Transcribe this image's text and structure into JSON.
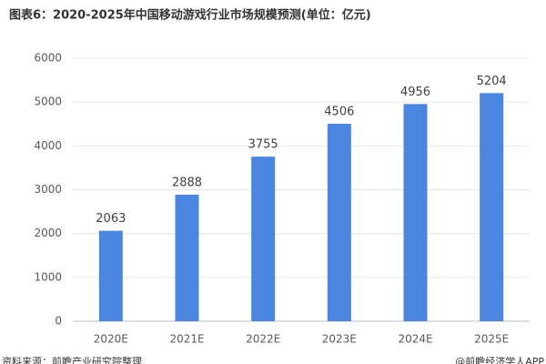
{
  "chart_data": {
    "type": "bar",
    "title": "图表6：2020-2025年中国移动游戏行业市场规模预测(单位：亿元)",
    "categories": [
      "2020E",
      "2021E",
      "2022E",
      "2023E",
      "2024E",
      "2025E"
    ],
    "values": [
      2063,
      2888,
      3755,
      4506,
      4956,
      5204
    ],
    "color": "#4a86e0",
    "ylim": [
      0,
      6000
    ],
    "yticks": [
      0,
      1000,
      2000,
      3000,
      4000,
      5000,
      6000
    ],
    "grid": true,
    "source": "资料来源：前瞻产业研究院整理",
    "credit": "@前瞻经济学人APP"
  }
}
